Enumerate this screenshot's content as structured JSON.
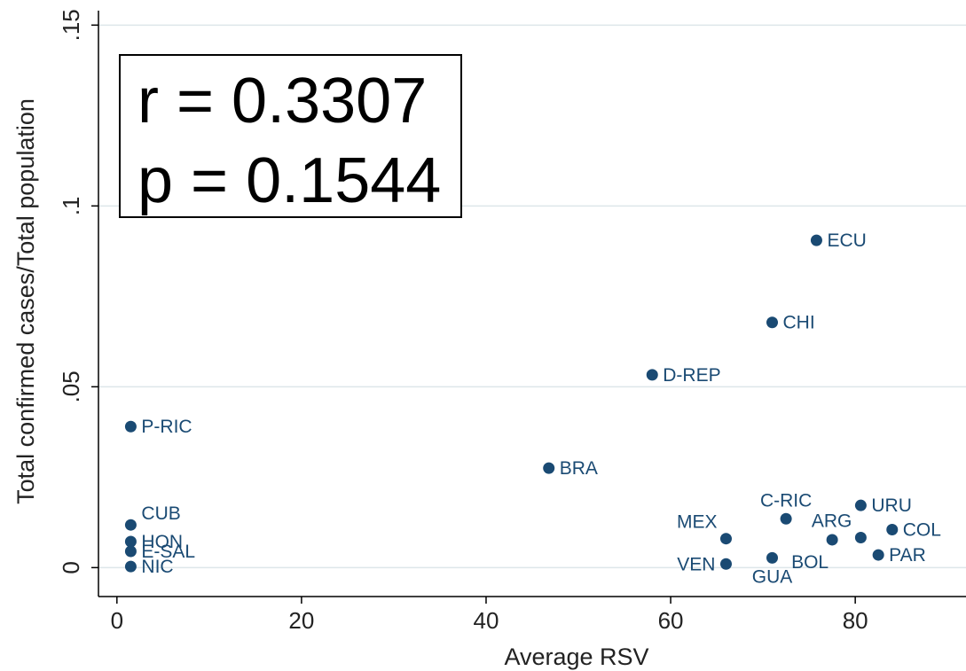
{
  "chart_data": {
    "type": "scatter",
    "xlabel": "Average RSV",
    "ylabel": "Total confirmed cases/Total population",
    "xlim": [
      -2,
      92
    ],
    "ylim": [
      -0.008,
      0.154
    ],
    "x_ticks": [
      0,
      20,
      40,
      60,
      80
    ],
    "x_tick_labels": [
      "0",
      "20",
      "40",
      "60",
      "80"
    ],
    "y_ticks": [
      0,
      0.05,
      0.1,
      0.15
    ],
    "y_tick_labels": [
      "0",
      ".05",
      ".1",
      ".15"
    ],
    "grid": "horizontal",
    "marker_color": "#1a4a73",
    "annotation": {
      "r_text": "r = 0.3307",
      "p_text": "p = 0.1544"
    },
    "points": [
      {
        "label": "ECU",
        "x": 75.8,
        "y": 0.0905,
        "pos": "right"
      },
      {
        "label": "CHI",
        "x": 71.0,
        "y": 0.0678,
        "pos": "right"
      },
      {
        "label": "D-REP",
        "x": 58.0,
        "y": 0.0533,
        "pos": "right"
      },
      {
        "label": "P-RIC",
        "x": 1.5,
        "y": 0.039,
        "pos": "right"
      },
      {
        "label": "BRA",
        "x": 46.8,
        "y": 0.0275,
        "pos": "right"
      },
      {
        "label": "URU",
        "x": 80.6,
        "y": 0.0172,
        "pos": "right"
      },
      {
        "label": "C-RIC",
        "x": 72.5,
        "y": 0.0135,
        "pos": "above"
      },
      {
        "label": "CUB",
        "x": 1.5,
        "y": 0.0118,
        "pos": "above-right"
      },
      {
        "label": "COL",
        "x": 84.0,
        "y": 0.0105,
        "pos": "right"
      },
      {
        "label": "MEX",
        "x": 66.0,
        "y": 0.008,
        "pos": "above-left"
      },
      {
        "label": "ARG",
        "x": 80.6,
        "y": 0.0083,
        "pos": "above-left"
      },
      {
        "label": "BOL",
        "x": 77.5,
        "y": 0.0077,
        "pos": "below-left"
      },
      {
        "label": "HON",
        "x": 1.5,
        "y": 0.0072,
        "pos": "right"
      },
      {
        "label": "E-SAL",
        "x": 1.5,
        "y": 0.0045,
        "pos": "right"
      },
      {
        "label": "PAR",
        "x": 82.5,
        "y": 0.0035,
        "pos": "right"
      },
      {
        "label": "GUA",
        "x": 71.0,
        "y": 0.0027,
        "pos": "below"
      },
      {
        "label": "VEN",
        "x": 66.0,
        "y": 0.001,
        "pos": "left"
      },
      {
        "label": "NIC",
        "x": 1.5,
        "y": 0.0003,
        "pos": "right"
      }
    ]
  }
}
